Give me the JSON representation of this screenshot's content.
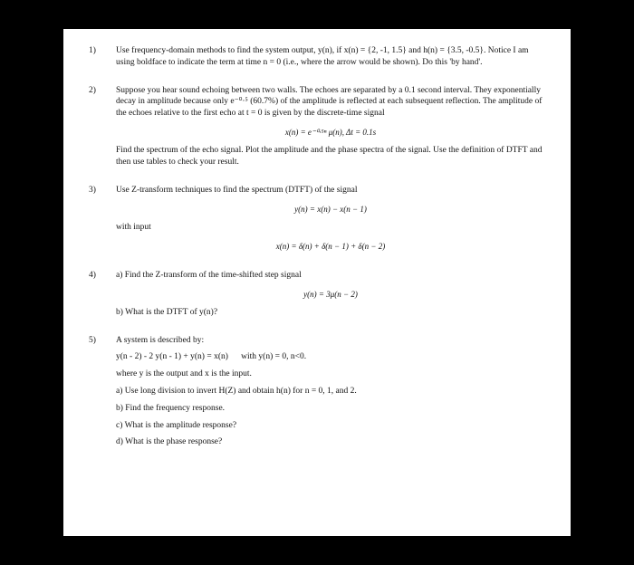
{
  "problems": {
    "p1": {
      "num": "1)",
      "text": "Use frequency-domain methods to find the system output, y(n), if x(n) = {2, -1, 1.5} and h(n) = {3.5, -0.5}. Notice I am using boldface to indicate the term at time n = 0 (i.e., where the arrow would be shown). Do this 'by hand'."
    },
    "p2": {
      "num": "2)",
      "text1": "Suppose you hear sound echoing between two walls. The echoes are separated by a 0.1 second interval. They exponentially decay in amplitude because only e⁻⁰·⁵ (60.7%) of the amplitude is reflected at each subsequent reflection. The amplitude of the echoes relative to the first echo at t = 0 is given by the discrete-time signal",
      "eq": "x(n) = e⁻⁰·⁵ⁿ μ(n),   Δt = 0.1s",
      "text2": "Find the spectrum of the echo signal. Plot the amplitude and the phase spectra of the signal. Use the definition of DTFT and then use tables to check your result."
    },
    "p3": {
      "num": "3)",
      "text1": "Use Z-transform techniques to find the spectrum (DTFT) of the signal",
      "eq1": "y(n) = x(n) − x(n − 1)",
      "text2": "with input",
      "eq2": "x(n) = δ(n) + δ(n − 1) + δ(n − 2)"
    },
    "p4": {
      "num": "4)",
      "text1": "a) Find the Z-transform of the time-shifted step signal",
      "eq": "y(n) = 3μ(n − 2)",
      "text2": "b)  What is the DTFT of y(n)?"
    },
    "p5": {
      "num": "5)",
      "text1": "A system is described by:",
      "eq": "y(n - 2) - 2 y(n - 1) + y(n) = x(n)      with y(n) = 0, n<0.",
      "text2": "where y is the output and x is the input.",
      "a": "a) Use long division to invert H(Z) and obtain h(n) for n = 0, 1, and 2.",
      "b": "b) Find the frequency response.",
      "c": "c) What is the amplitude response?",
      "d": "d) What is the phase response?"
    }
  }
}
